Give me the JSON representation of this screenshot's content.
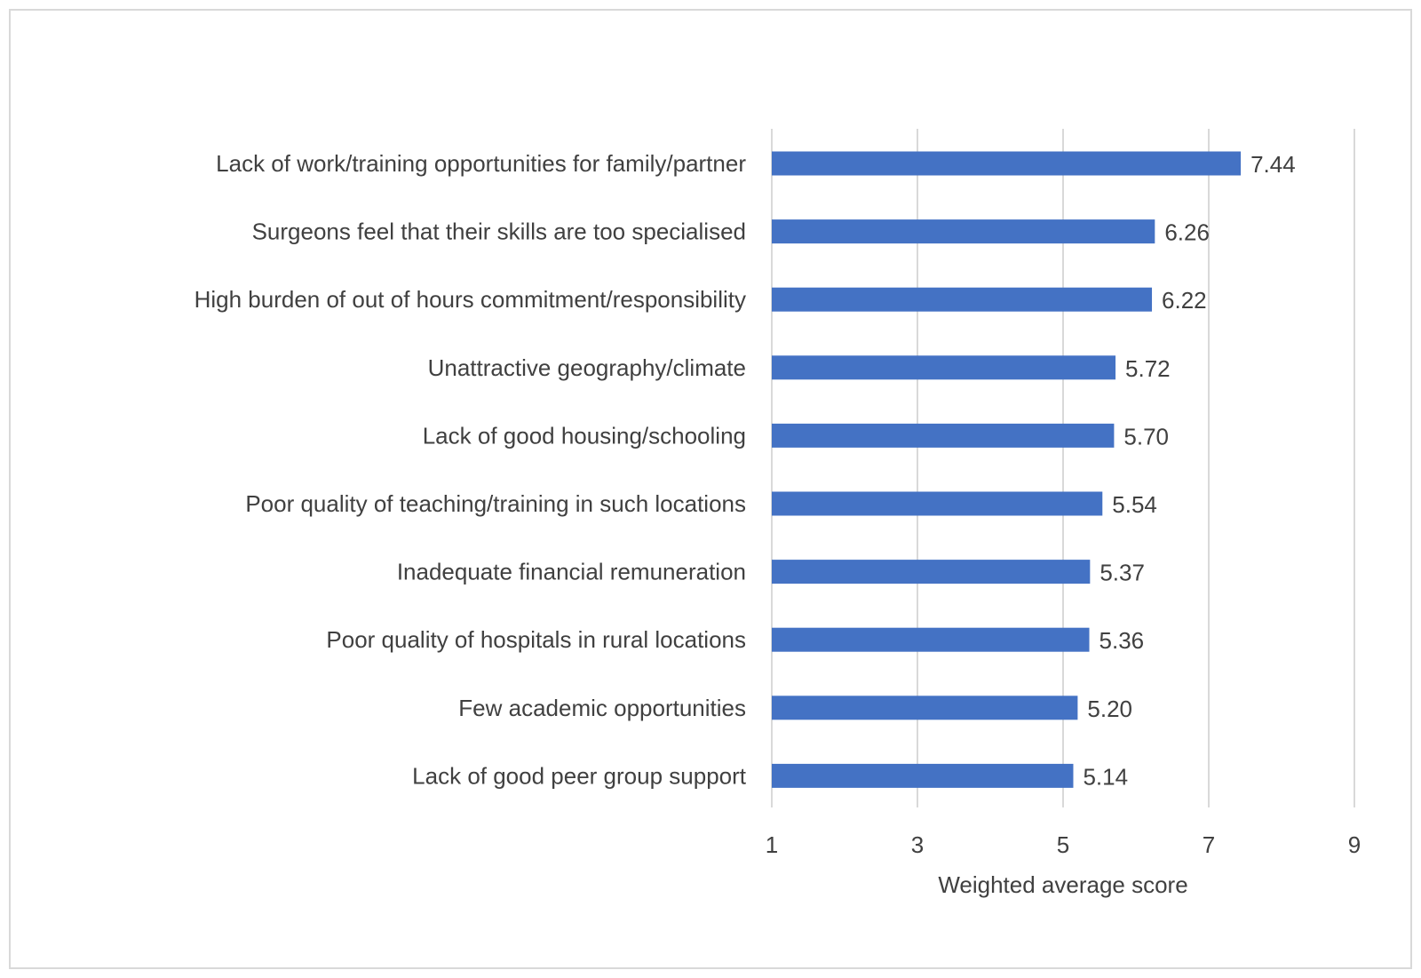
{
  "chart_data": {
    "type": "bar",
    "orientation": "horizontal",
    "title": "",
    "xlabel": "Weighted average score",
    "ylabel": "",
    "xlim": [
      1,
      9
    ],
    "xticks": [
      "1",
      "3",
      "5",
      "7",
      "9"
    ],
    "grid": true,
    "categories": [
      "Lack of work/training opportunities for family/partner",
      "Surgeons feel that their skills are too specialised",
      "High burden of out of hours commitment/responsibility",
      "Unattractive geography/climate",
      "Lack of good housing/schooling",
      "Poor quality of teaching/training in such locations",
      "Inadequate financial remuneration",
      "Poor quality of hospitals in rural locations",
      "Few academic opportunities",
      "Lack of good peer group support"
    ],
    "values": [
      7.44,
      6.26,
      6.22,
      5.72,
      5.7,
      5.54,
      5.37,
      5.36,
      5.2,
      5.14
    ],
    "value_labels": [
      "7.44",
      "6.26",
      "6.22",
      "5.72",
      "5.70",
      "5.54",
      "5.37",
      "5.36",
      "5.20",
      "5.14"
    ],
    "colors": {
      "bar": "#4472c4",
      "grid": "#d9d9d9",
      "text": "#404040"
    }
  }
}
